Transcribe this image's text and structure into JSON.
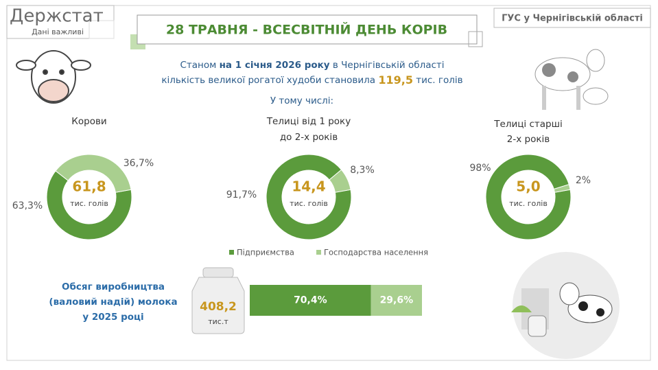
{
  "header": {
    "logo": "Держстат",
    "logo_sub": "Дані важливі",
    "title": "28 ТРАВНЯ - ВСЕСВІТНІЙ ДЕНЬ КОРІВ",
    "org": "ГУС у Чернігівській області"
  },
  "intro": {
    "line1_pre": "Станом",
    "line1_bold": "на 1 січня 2026 року",
    "line1_post": "в Чернігівській області",
    "line2_pre": "кількість великої рогатої худоби становила",
    "line2_value": "119,5",
    "line2_unit": "тис. голів",
    "sub": "У тому числі:"
  },
  "chart_data": [
    {
      "type": "pie",
      "title": [
        "Корови"
      ],
      "center": "61,8",
      "center_unit": "тис. голів",
      "values": [
        63.3,
        36.7
      ],
      "value_labels": [
        "63,3%",
        "36,7%"
      ],
      "colors": [
        "#5b9b3c",
        "#a9cf8f"
      ]
    },
    {
      "type": "pie",
      "title": [
        "Телиці від 1 року",
        "до 2-х років"
      ],
      "center": "14,4",
      "center_unit": "тис. голів",
      "values": [
        91.7,
        8.3
      ],
      "value_labels": [
        "91,7%",
        "8,3%"
      ],
      "colors": [
        "#5b9b3c",
        "#a9cf8f"
      ]
    },
    {
      "type": "pie",
      "title": [
        "Телиці старші",
        "2-х років"
      ],
      "center": "5,0",
      "center_unit": "тис. голів",
      "values": [
        98,
        2
      ],
      "value_labels": [
        "98%",
        "2%"
      ],
      "colors": [
        "#5b9b3c",
        "#a9cf8f"
      ]
    },
    {
      "type": "bar",
      "stacked": true,
      "orientation": "horizontal",
      "title": [
        "Обсяг виробництва",
        "(валовий надій) молока",
        "у 2025 році"
      ],
      "total": "408,2",
      "total_unit": "тис.т",
      "series": [
        {
          "name": "Підприємства",
          "color": "#5b9b3c",
          "values": [
            70.4
          ],
          "value_labels": [
            "70,4%"
          ]
        },
        {
          "name": "Господарства населення",
          "color": "#a9cf8f",
          "values": [
            29.6
          ],
          "value_labels": [
            "29,6%"
          ]
        }
      ]
    }
  ]
}
